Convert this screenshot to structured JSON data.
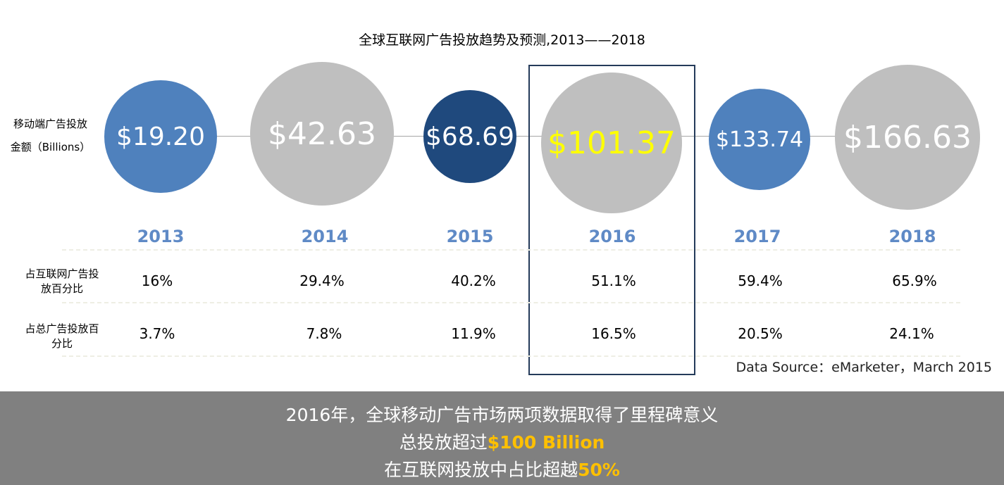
{
  "chart_data": {
    "type": "bubble",
    "title": "全球互联网广告投放趋势及预测,2013——2018",
    "ylabel_line1": "移动端广告投放",
    "ylabel_line2": "金额（Billions）",
    "categories": [
      "2013",
      "2014",
      "2015",
      "2016",
      "2017",
      "2018"
    ],
    "values": [
      19.2,
      42.63,
      68.69,
      101.37,
      133.74,
      166.63
    ],
    "value_labels": [
      "$19.20",
      "$42.63",
      "$68.69",
      "$101.37",
      "$133.74",
      "$166.63"
    ],
    "highlight": "2016",
    "colors": [
      "#4f81bd",
      "#bfbfbf",
      "#1f497d",
      "#bfbfbf",
      "#4f81bd",
      "#bfbfbf"
    ],
    "highlight_text_color": "#ffff00",
    "rows": [
      {
        "label_line1": "占互联网广告投",
        "label_line2": "放百分比",
        "values": [
          "16%",
          "29.4%",
          "40.2%",
          "51.1%",
          "59.4%",
          "65.9%"
        ]
      },
      {
        "label_line1": "占总广告投放百",
        "label_line2": "分比",
        "values": [
          "3.7%",
          "7.8%",
          "11.9%",
          "16.5%",
          "20.5%",
          "24.1%"
        ]
      }
    ],
    "source": "Data Source：eMarketer，March 2015"
  },
  "summary": {
    "line1": "2016年，全球移动广告市场两项数据取得了里程碑意义",
    "line2_prefix": "总投放超过",
    "line2_highlight": "$100 Billion",
    "line3_prefix": "在互联网投放中占比超越",
    "line3_highlight": "50%"
  }
}
